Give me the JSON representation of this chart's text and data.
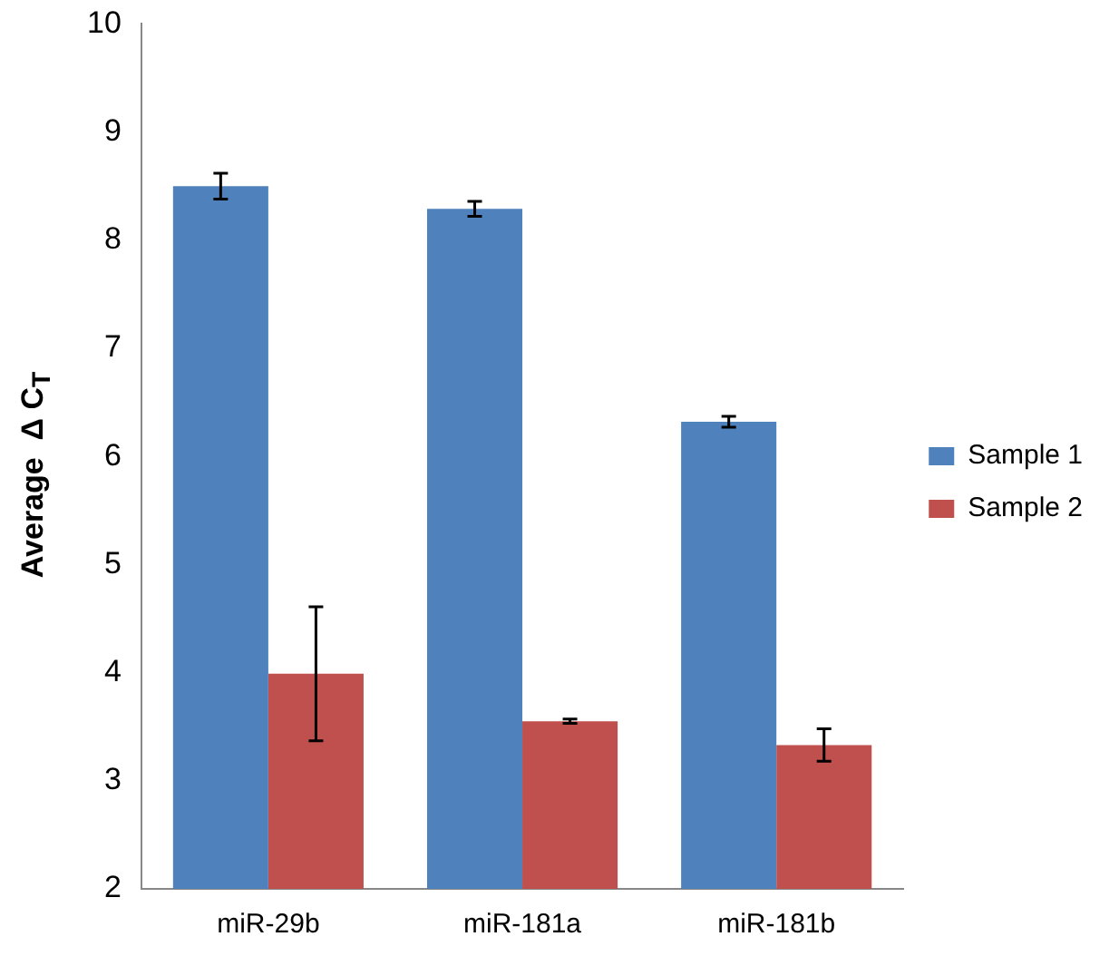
{
  "chart_data": {
    "type": "bar",
    "ylabel": "Average  Δ C$_{T}$",
    "categories": [
      "miR-29b",
      "miR-181a",
      "miR-181b"
    ],
    "series": [
      {
        "name": "Sample 1",
        "color": "#4f81bd",
        "values": [
          8.5,
          8.29,
          6.32
        ],
        "errors": [
          0.12,
          0.07,
          0.05
        ]
      },
      {
        "name": "Sample 2",
        "color": "#c0504d",
        "values": [
          3.99,
          3.55,
          3.33
        ],
        "errors": [
          0.62,
          0.02,
          0.15
        ]
      }
    ],
    "ylim": [
      2,
      10
    ],
    "yticks": [
      2,
      3,
      4,
      5,
      6,
      7,
      8,
      9,
      10
    ],
    "grid": false,
    "legend": "right"
  }
}
